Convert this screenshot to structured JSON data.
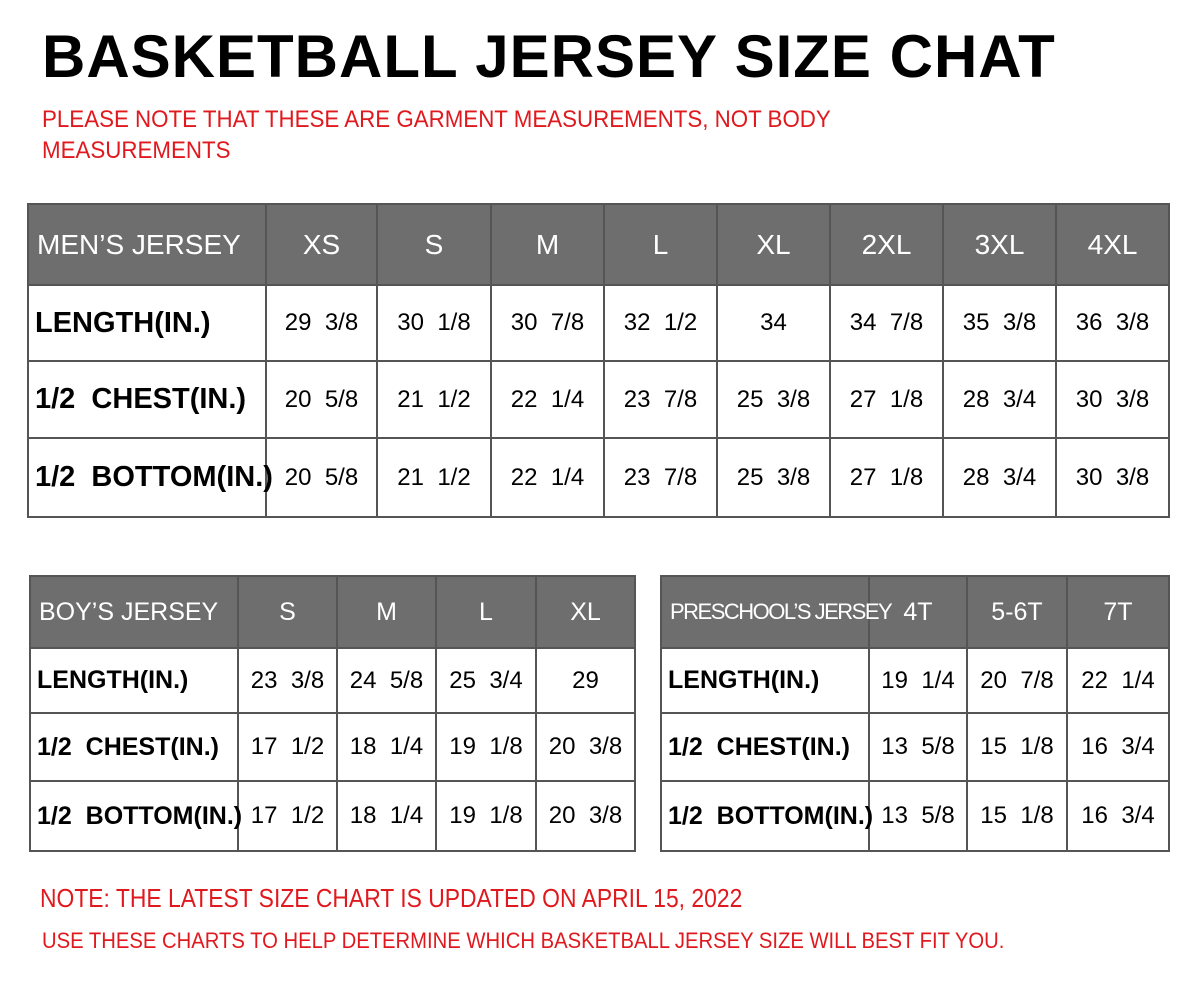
{
  "title": "BASKETBALL JERSEY SIZE CHAT",
  "top_note": "PLEASE NOTE THAT THESE ARE GARMENT MEASUREMENTS, NOT BODY MEASUREMENTS",
  "bottom_note_1": "NOTE: THE LATEST SIZE CHART IS UPDATED ON APRIL 15, 2022",
  "bottom_note_2": "USE THESE CHARTS TO HELP DETERMINE WHICH  BASKETBALL JERSEY  SIZE WILL BEST FIT YOU.",
  "colors": {
    "header_bg": "#6e6e6e",
    "note": "#e0191e"
  },
  "tables": [
    {
      "id": "mens",
      "header": [
        "MEN’S JERSEY",
        "XS",
        "S",
        "M",
        "L",
        "XL",
        "2XL",
        "3XL",
        "4XL"
      ],
      "rows": [
        [
          "LENGTH(IN.)",
          "29  3/8",
          "30  1/8",
          "30  7/8",
          "32  1/2",
          "34",
          "34  7/8",
          "35  3/8",
          "36  3/8"
        ],
        [
          "1/2  CHEST(IN.)",
          "20  5/8",
          "21  1/2",
          "22  1/4",
          "23  7/8",
          "25  3/8",
          "27  1/8",
          "28  3/4",
          "30  3/8"
        ],
        [
          "1/2  BOTTOM(IN.)",
          "20  5/8",
          "21  1/2",
          "22  1/4",
          "23  7/8",
          "25  3/8",
          "27  1/8",
          "28  3/4",
          "30  3/8"
        ]
      ]
    },
    {
      "id": "boys",
      "header": [
        "BOY’S JERSEY",
        "S",
        "M",
        "L",
        "XL"
      ],
      "rows": [
        [
          "LENGTH(IN.)",
          "23  3/8",
          "24  5/8",
          "25  3/4",
          "29"
        ],
        [
          "1/2  CHEST(IN.)",
          "17  1/2",
          "18  1/4",
          "19  1/8",
          "20  3/8"
        ],
        [
          "1/2  BOTTOM(IN.)",
          "17  1/2",
          "18  1/4",
          "19  1/8",
          "20  3/8"
        ]
      ]
    },
    {
      "id": "pre",
      "header": [
        "PRESCHOOL’S JERSEY",
        "4T",
        "5-6T",
        "7T"
      ],
      "rows": [
        [
          "LENGTH(IN.)",
          "19  1/4",
          "20  7/8",
          "22  1/4"
        ],
        [
          "1/2  CHEST(IN.)",
          "13  5/8",
          "15  1/8",
          "16  3/4"
        ],
        [
          "1/2  BOTTOM(IN.)",
          "13  5/8",
          "15  1/8",
          "16  3/4"
        ]
      ]
    }
  ]
}
